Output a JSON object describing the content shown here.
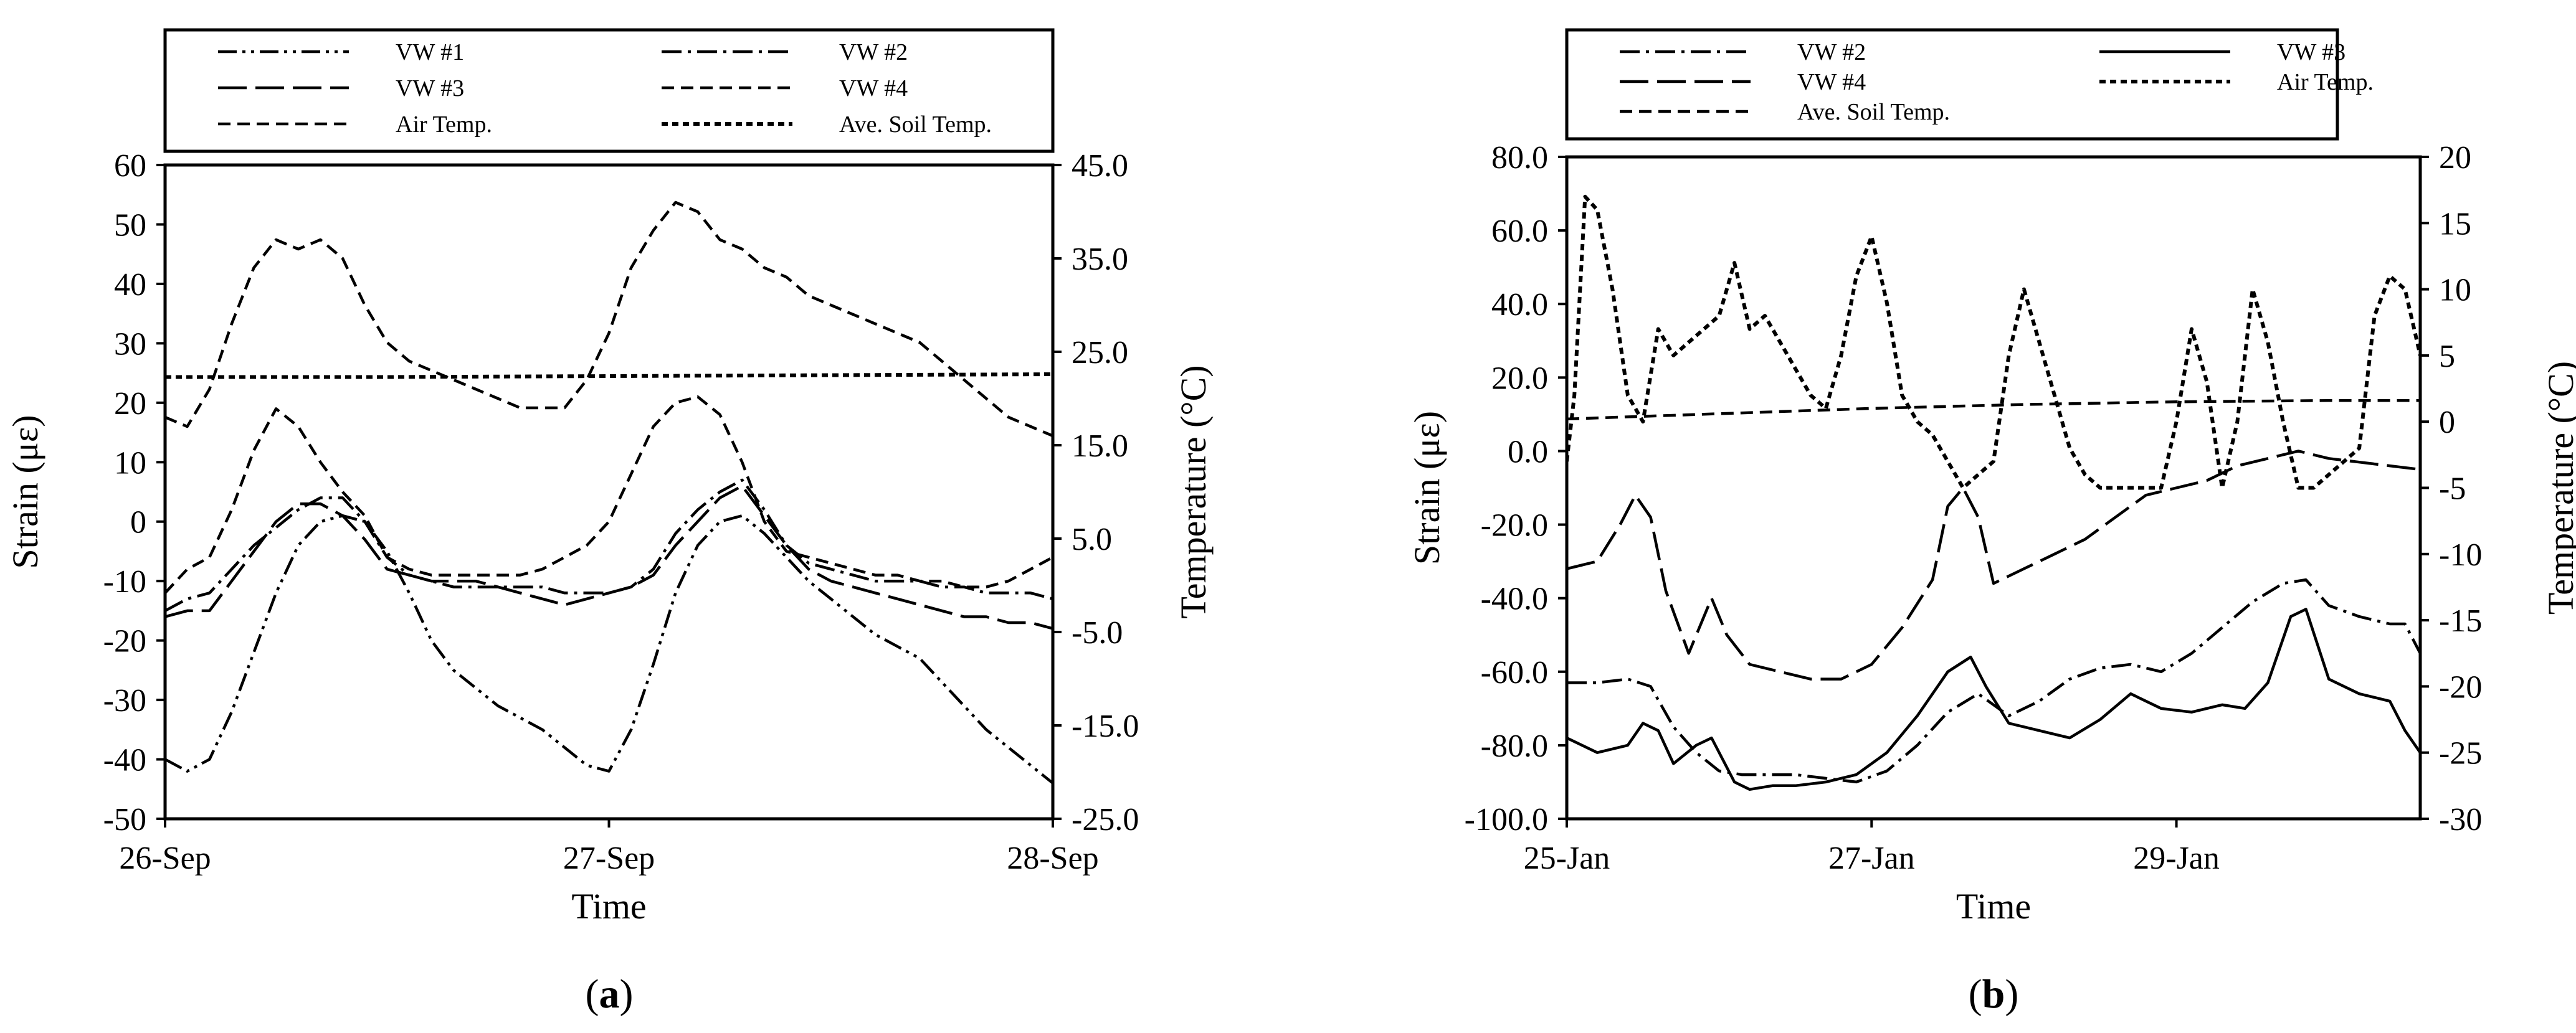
{
  "figure": {
    "panel_label_a": "(a)",
    "panel_label_b": "(b)"
  },
  "chart_data": [
    {
      "id": "a",
      "type": "line",
      "panel_label": "(a)",
      "xlabel": "Time",
      "ylabel": "Strain (με)",
      "y2label": "Temperature (°C)",
      "xlim": [
        0,
        2
      ],
      "ylim": [
        -50,
        60
      ],
      "y2lim": [
        -25,
        45
      ],
      "x_ticks": [
        0,
        1,
        2
      ],
      "x_tick_labels": [
        "26-Sep",
        "27-Sep",
        "28-Sep"
      ],
      "y_ticks": [
        -50,
        -40,
        -30,
        -20,
        -10,
        0,
        10,
        20,
        30,
        40,
        50,
        60
      ],
      "y_tick_labels": [
        "-50",
        "-40",
        "-30",
        "-20",
        "-10",
        "0",
        "10",
        "20",
        "30",
        "40",
        "50",
        "60"
      ],
      "y2_ticks": [
        -25,
        -15,
        -5,
        5,
        15,
        25,
        35,
        45
      ],
      "y2_tick_labels": [
        "-25.0",
        "-15.0",
        "-5.0",
        "5.0",
        "15.0",
        "25.0",
        "35.0",
        "45.0"
      ],
      "legend_position": "top",
      "series": [
        {
          "name": "VW #1",
          "axis": "left",
          "dash": "dash-dot-dot",
          "weight": "normal",
          "x": [
            0,
            0.05,
            0.1,
            0.15,
            0.2,
            0.25,
            0.3,
            0.35,
            0.4,
            0.45,
            0.5,
            0.55,
            0.6,
            0.65,
            0.7,
            0.75,
            0.8,
            0.85,
            0.9,
            0.95,
            1.0,
            1.05,
            1.1,
            1.15,
            1.2,
            1.25,
            1.3,
            1.35,
            1.4,
            1.45,
            1.5,
            1.55,
            1.6,
            1.65,
            1.7,
            1.75,
            1.8,
            1.85,
            1.9,
            1.95,
            2.0
          ],
          "values": [
            -40,
            -42,
            -40,
            -32,
            -22,
            -12,
            -4,
            0,
            1,
            0,
            -5,
            -12,
            -20,
            -25,
            -28,
            -31,
            -33,
            -35,
            -38,
            -41,
            -42,
            -35,
            -24,
            -12,
            -4,
            0,
            1,
            -2,
            -6,
            -10,
            -13,
            -16,
            -19,
            -21,
            -23,
            -27,
            -31,
            -35,
            -38,
            -41,
            -44
          ]
        },
        {
          "name": "VW #2",
          "axis": "left",
          "dash": "dash-dot",
          "weight": "normal",
          "x": [
            0,
            0.05,
            0.1,
            0.15,
            0.2,
            0.25,
            0.3,
            0.35,
            0.4,
            0.45,
            0.5,
            0.55,
            0.6,
            0.65,
            0.7,
            0.75,
            0.8,
            0.85,
            0.9,
            0.95,
            1.0,
            1.05,
            1.1,
            1.15,
            1.2,
            1.25,
            1.3,
            1.35,
            1.4,
            1.45,
            1.5,
            1.55,
            1.6,
            1.65,
            1.7,
            1.75,
            1.8,
            1.85,
            1.9,
            1.95,
            2.0
          ],
          "values": [
            -15,
            -13,
            -12,
            -8,
            -4,
            -1,
            2,
            4,
            4,
            0,
            -6,
            -9,
            -10,
            -11,
            -11,
            -11,
            -11,
            -11,
            -12,
            -12,
            -12,
            -11,
            -8,
            -2,
            2,
            5,
            7,
            2,
            -4,
            -7,
            -8,
            -9,
            -10,
            -10,
            -10,
            -11,
            -11,
            -12,
            -12,
            -12,
            -13
          ]
        },
        {
          "name": "VW #3",
          "axis": "left",
          "dash": "long-dash",
          "weight": "normal",
          "x": [
            0,
            0.05,
            0.1,
            0.15,
            0.2,
            0.25,
            0.3,
            0.35,
            0.4,
            0.45,
            0.5,
            0.55,
            0.6,
            0.65,
            0.7,
            0.75,
            0.8,
            0.85,
            0.9,
            0.95,
            1.0,
            1.05,
            1.1,
            1.15,
            1.2,
            1.25,
            1.3,
            1.35,
            1.4,
            1.45,
            1.5,
            1.55,
            1.6,
            1.65,
            1.7,
            1.75,
            1.8,
            1.85,
            1.9,
            1.95,
            2.0
          ],
          "values": [
            -16,
            -15,
            -15,
            -10,
            -5,
            0,
            3,
            3,
            1,
            -3,
            -8,
            -9,
            -10,
            -10,
            -10,
            -11,
            -12,
            -13,
            -14,
            -13,
            -12,
            -11,
            -9,
            -4,
            0,
            4,
            6,
            1,
            -4,
            -8,
            -10,
            -11,
            -12,
            -13,
            -14,
            -15,
            -16,
            -16,
            -17,
            -17,
            -18
          ]
        },
        {
          "name": "VW #4",
          "axis": "left",
          "dash": "dash",
          "weight": "normal",
          "x": [
            0,
            0.05,
            0.1,
            0.15,
            0.2,
            0.25,
            0.3,
            0.35,
            0.4,
            0.45,
            0.5,
            0.55,
            0.6,
            0.65,
            0.7,
            0.75,
            0.8,
            0.85,
            0.9,
            0.95,
            1.0,
            1.05,
            1.1,
            1.15,
            1.2,
            1.25,
            1.3,
            1.35,
            1.4,
            1.45,
            1.5,
            1.55,
            1.6,
            1.65,
            1.7,
            1.75,
            1.8,
            1.85,
            1.9,
            1.95,
            2.0
          ],
          "values": [
            -12,
            -8,
            -6,
            2,
            12,
            19,
            16,
            10,
            5,
            1,
            -6,
            -8,
            -9,
            -9,
            -9,
            -9,
            -9,
            -8,
            -6,
            -4,
            0,
            8,
            16,
            20,
            21,
            18,
            10,
            0,
            -5,
            -6,
            -7,
            -8,
            -9,
            -9,
            -10,
            -10,
            -11,
            -11,
            -10,
            -8,
            -6
          ]
        },
        {
          "name": "Air Temp.",
          "axis": "right",
          "dash": "dash",
          "weight": "normal",
          "x": [
            0,
            0.05,
            0.1,
            0.15,
            0.2,
            0.25,
            0.3,
            0.35,
            0.4,
            0.45,
            0.5,
            0.55,
            0.6,
            0.65,
            0.7,
            0.75,
            0.8,
            0.85,
            0.9,
            0.95,
            1.0,
            1.05,
            1.1,
            1.15,
            1.2,
            1.25,
            1.3,
            1.35,
            1.4,
            1.45,
            1.5,
            1.55,
            1.6,
            1.65,
            1.7,
            1.75,
            1.8,
            1.85,
            1.9,
            1.95,
            2.0
          ],
          "values": [
            18,
            17,
            21,
            28,
            34,
            37,
            36,
            37,
            35,
            30,
            26,
            24,
            23,
            22,
            21,
            20,
            19,
            19,
            19,
            22,
            27,
            34,
            38,
            41,
            40,
            37,
            36,
            34,
            33,
            31,
            30,
            29,
            28,
            27,
            26,
            24,
            22,
            20,
            18,
            17,
            16
          ]
        },
        {
          "name": "Ave. Soil Temp.",
          "axis": "right",
          "dash": "short-dash",
          "weight": "bold",
          "x": [
            0,
            0.5,
            1.0,
            1.5,
            2.0
          ],
          "values": [
            22.3,
            22.3,
            22.4,
            22.5,
            22.6
          ]
        }
      ]
    },
    {
      "id": "b",
      "type": "line",
      "panel_label": "(b)",
      "xlabel": "Time",
      "ylabel": "Strain (με)",
      "y2label": "Temperature (°C)",
      "xlim": [
        0,
        5.6
      ],
      "ylim": [
        -100,
        80
      ],
      "y2lim": [
        -30,
        20
      ],
      "x_ticks": [
        0,
        2,
        4
      ],
      "x_tick_labels": [
        "25-Jan",
        "27-Jan",
        "29-Jan"
      ],
      "y_ticks": [
        -100,
        -80,
        -60,
        -40,
        -20,
        0,
        20,
        40,
        60,
        80
      ],
      "y_tick_labels": [
        "-100.0",
        "-80.0",
        "-60.0",
        "-40.0",
        "-20.0",
        "0.0",
        "20.0",
        "40.0",
        "60.0",
        "80.0"
      ],
      "y2_ticks": [
        -30,
        -25,
        -20,
        -15,
        -10,
        -5,
        0,
        5,
        10,
        15,
        20
      ],
      "y2_tick_labels": [
        "-30",
        "-25",
        "-20",
        "-15",
        "-10",
        "-5",
        "0",
        "5",
        "10",
        "15",
        "20"
      ],
      "legend_position": "top",
      "series": [
        {
          "name": "VW #2",
          "axis": "left",
          "dash": "dash-dot",
          "weight": "normal",
          "x": [
            0,
            0.2,
            0.4,
            0.55,
            0.7,
            0.85,
            1.0,
            1.15,
            1.3,
            1.5,
            1.7,
            1.9,
            2.1,
            2.3,
            2.5,
            2.7,
            2.9,
            3.1,
            3.3,
            3.5,
            3.7,
            3.9,
            4.1,
            4.3,
            4.5,
            4.7,
            4.85,
            5.0,
            5.2,
            5.4,
            5.5,
            5.6
          ],
          "values": [
            -63,
            -63,
            -62,
            -64,
            -75,
            -82,
            -87,
            -88,
            -88,
            -88,
            -89,
            -90,
            -87,
            -80,
            -71,
            -66,
            -72,
            -68,
            -62,
            -59,
            -58,
            -60,
            -55,
            -48,
            -41,
            -36,
            -35,
            -42,
            -45,
            -47,
            -47,
            -55
          ]
        },
        {
          "name": "VW #3",
          "axis": "left",
          "dash": "solid",
          "weight": "normal",
          "x": [
            0,
            0.2,
            0.4,
            0.5,
            0.6,
            0.7,
            0.85,
            0.95,
            1.1,
            1.2,
            1.35,
            1.5,
            1.7,
            1.9,
            2.1,
            2.3,
            2.5,
            2.65,
            2.75,
            2.9,
            3.1,
            3.3,
            3.5,
            3.7,
            3.9,
            4.1,
            4.3,
            4.45,
            4.6,
            4.75,
            4.85,
            5.0,
            5.2,
            5.4,
            5.5,
            5.6
          ],
          "values": [
            -78,
            -82,
            -80,
            -74,
            -76,
            -85,
            -80,
            -78,
            -90,
            -92,
            -91,
            -91,
            -90,
            -88,
            -82,
            -72,
            -60,
            -56,
            -64,
            -74,
            -76,
            -78,
            -73,
            -66,
            -70,
            -71,
            -69,
            -70,
            -63,
            -45,
            -43,
            -62,
            -66,
            -68,
            -76,
            -82
          ]
        },
        {
          "name": "VW #4",
          "axis": "left",
          "dash": "long-dash",
          "weight": "normal",
          "x": [
            0,
            0.2,
            0.35,
            0.45,
            0.55,
            0.65,
            0.8,
            0.95,
            1.05,
            1.2,
            1.4,
            1.6,
            1.8,
            2.0,
            2.2,
            2.4,
            2.5,
            2.6,
            2.7,
            2.8,
            3.0,
            3.2,
            3.4,
            3.6,
            3.8,
            4.0,
            4.2,
            4.4,
            4.6,
            4.8,
            5.0,
            5.2,
            5.4,
            5.6
          ],
          "values": [
            -32,
            -30,
            -20,
            -12,
            -18,
            -38,
            -55,
            -40,
            -50,
            -58,
            -60,
            -62,
            -62,
            -58,
            -48,
            -35,
            -15,
            -10,
            -18,
            -36,
            -32,
            -28,
            -24,
            -18,
            -12,
            -10,
            -8,
            -4,
            -2,
            0,
            -2,
            -3,
            -4,
            -5
          ]
        },
        {
          "name": "Air Temp.",
          "axis": "right",
          "dash": "short-dash",
          "weight": "bold",
          "x": [
            0,
            0.05,
            0.12,
            0.2,
            0.3,
            0.4,
            0.5,
            0.6,
            0.7,
            0.8,
            0.9,
            1.0,
            1.1,
            1.2,
            1.3,
            1.4,
            1.5,
            1.6,
            1.7,
            1.8,
            1.9,
            2.0,
            2.1,
            2.2,
            2.3,
            2.4,
            2.5,
            2.6,
            2.7,
            2.8,
            2.9,
            3.0,
            3.1,
            3.2,
            3.3,
            3.4,
            3.5,
            3.6,
            3.7,
            3.8,
            3.9,
            4.0,
            4.1,
            4.2,
            4.25,
            4.3,
            4.4,
            4.5,
            4.6,
            4.7,
            4.8,
            4.9,
            5.0,
            5.1,
            5.2,
            5.3,
            5.4,
            5.5,
            5.6
          ],
          "values": [
            -3,
            2,
            17,
            16,
            10,
            2,
            0,
            7,
            5,
            6,
            7,
            8,
            12,
            7,
            8,
            6,
            4,
            2,
            1,
            5,
            11,
            14,
            9,
            2,
            0,
            -1,
            -3,
            -5,
            -4,
            -3,
            5,
            10,
            6,
            2,
            -2,
            -4,
            -5,
            -5,
            -5,
            -5,
            -5,
            0,
            7,
            3,
            -1,
            -5,
            0,
            10,
            6,
            0,
            -5,
            -5,
            -4,
            -3,
            -2,
            8,
            11,
            10,
            5
          ]
        },
        {
          "name": "Ave. Soil Temp.",
          "axis": "right",
          "dash": "dash",
          "weight": "normal",
          "x": [
            0,
            1,
            2,
            3,
            4,
            5,
            5.6
          ],
          "values": [
            0.2,
            0.6,
            1.0,
            1.3,
            1.5,
            1.6,
            1.6
          ]
        }
      ]
    }
  ]
}
